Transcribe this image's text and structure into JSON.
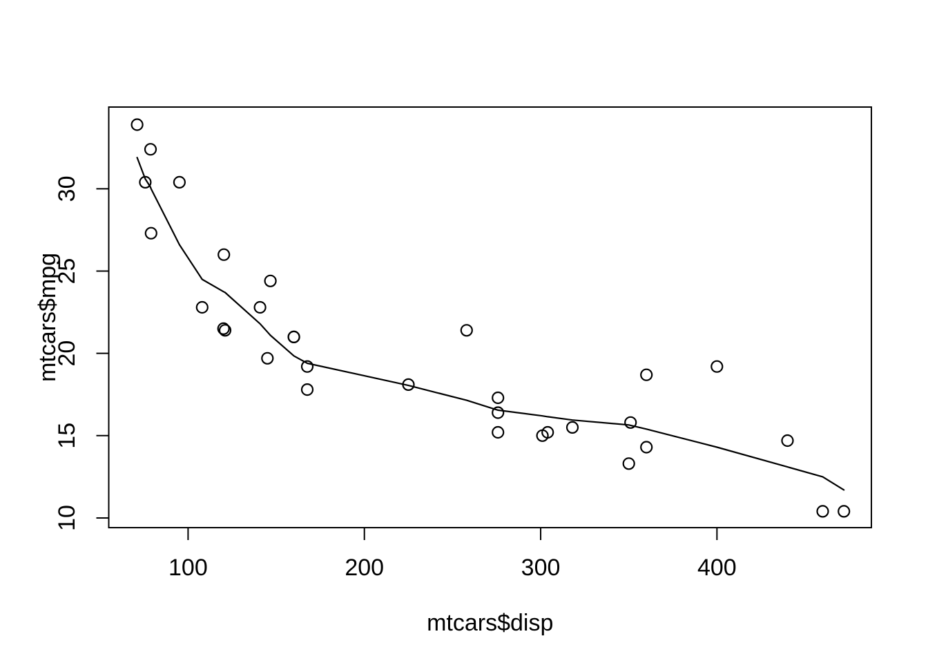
{
  "chart_data": {
    "type": "scatter",
    "title": "",
    "xlabel": "mtcars$disp",
    "ylabel": "mtcars$mpg",
    "x_ticks": [
      100,
      200,
      300,
      400
    ],
    "y_ticks": [
      10,
      15,
      20,
      25,
      30
    ],
    "xlim": [
      55.0,
      487.6
    ],
    "ylim": [
      9.41,
      34.97
    ],
    "grid": false,
    "legend": "none",
    "marker": "open-circle",
    "colors": {
      "foreground": "#000000",
      "background": "#ffffff"
    },
    "points": {
      "x": [
        160,
        160,
        108,
        258,
        360,
        225,
        360,
        146.7,
        140.8,
        167.6,
        167.6,
        275.8,
        275.8,
        275.8,
        472,
        460,
        440,
        78.7,
        75.7,
        71.1,
        120.1,
        318,
        304,
        350,
        400,
        79,
        120.3,
        95.1,
        351,
        145,
        301,
        121
      ],
      "y": [
        21,
        21,
        22.8,
        21.4,
        18.7,
        18.1,
        14.3,
        24.4,
        22.8,
        19.2,
        17.8,
        16.4,
        17.3,
        15.2,
        10.4,
        10.4,
        14.7,
        32.4,
        30.4,
        33.9,
        21.5,
        15.5,
        15.2,
        13.3,
        19.2,
        27.3,
        26,
        30.4,
        15.8,
        19.7,
        15,
        21.4
      ]
    },
    "smooth_line": {
      "name": "lowess-fit",
      "x": [
        71.1,
        75.7,
        78.7,
        79,
        95.1,
        108,
        120.1,
        121,
        140.8,
        145,
        146.7,
        160,
        167.6,
        225,
        258,
        275.8,
        301,
        304,
        318,
        350,
        360,
        400,
        440,
        460,
        472
      ],
      "y": [
        31.9,
        30.6,
        30.1,
        30.0,
        26.6,
        24.5,
        23.75,
        23.7,
        21.8,
        21.3,
        21.1,
        19.85,
        19.4,
        18.05,
        17.15,
        16.55,
        16.2,
        16.15,
        15.95,
        15.65,
        15.4,
        14.3,
        13.1,
        12.5,
        11.7
      ]
    }
  }
}
